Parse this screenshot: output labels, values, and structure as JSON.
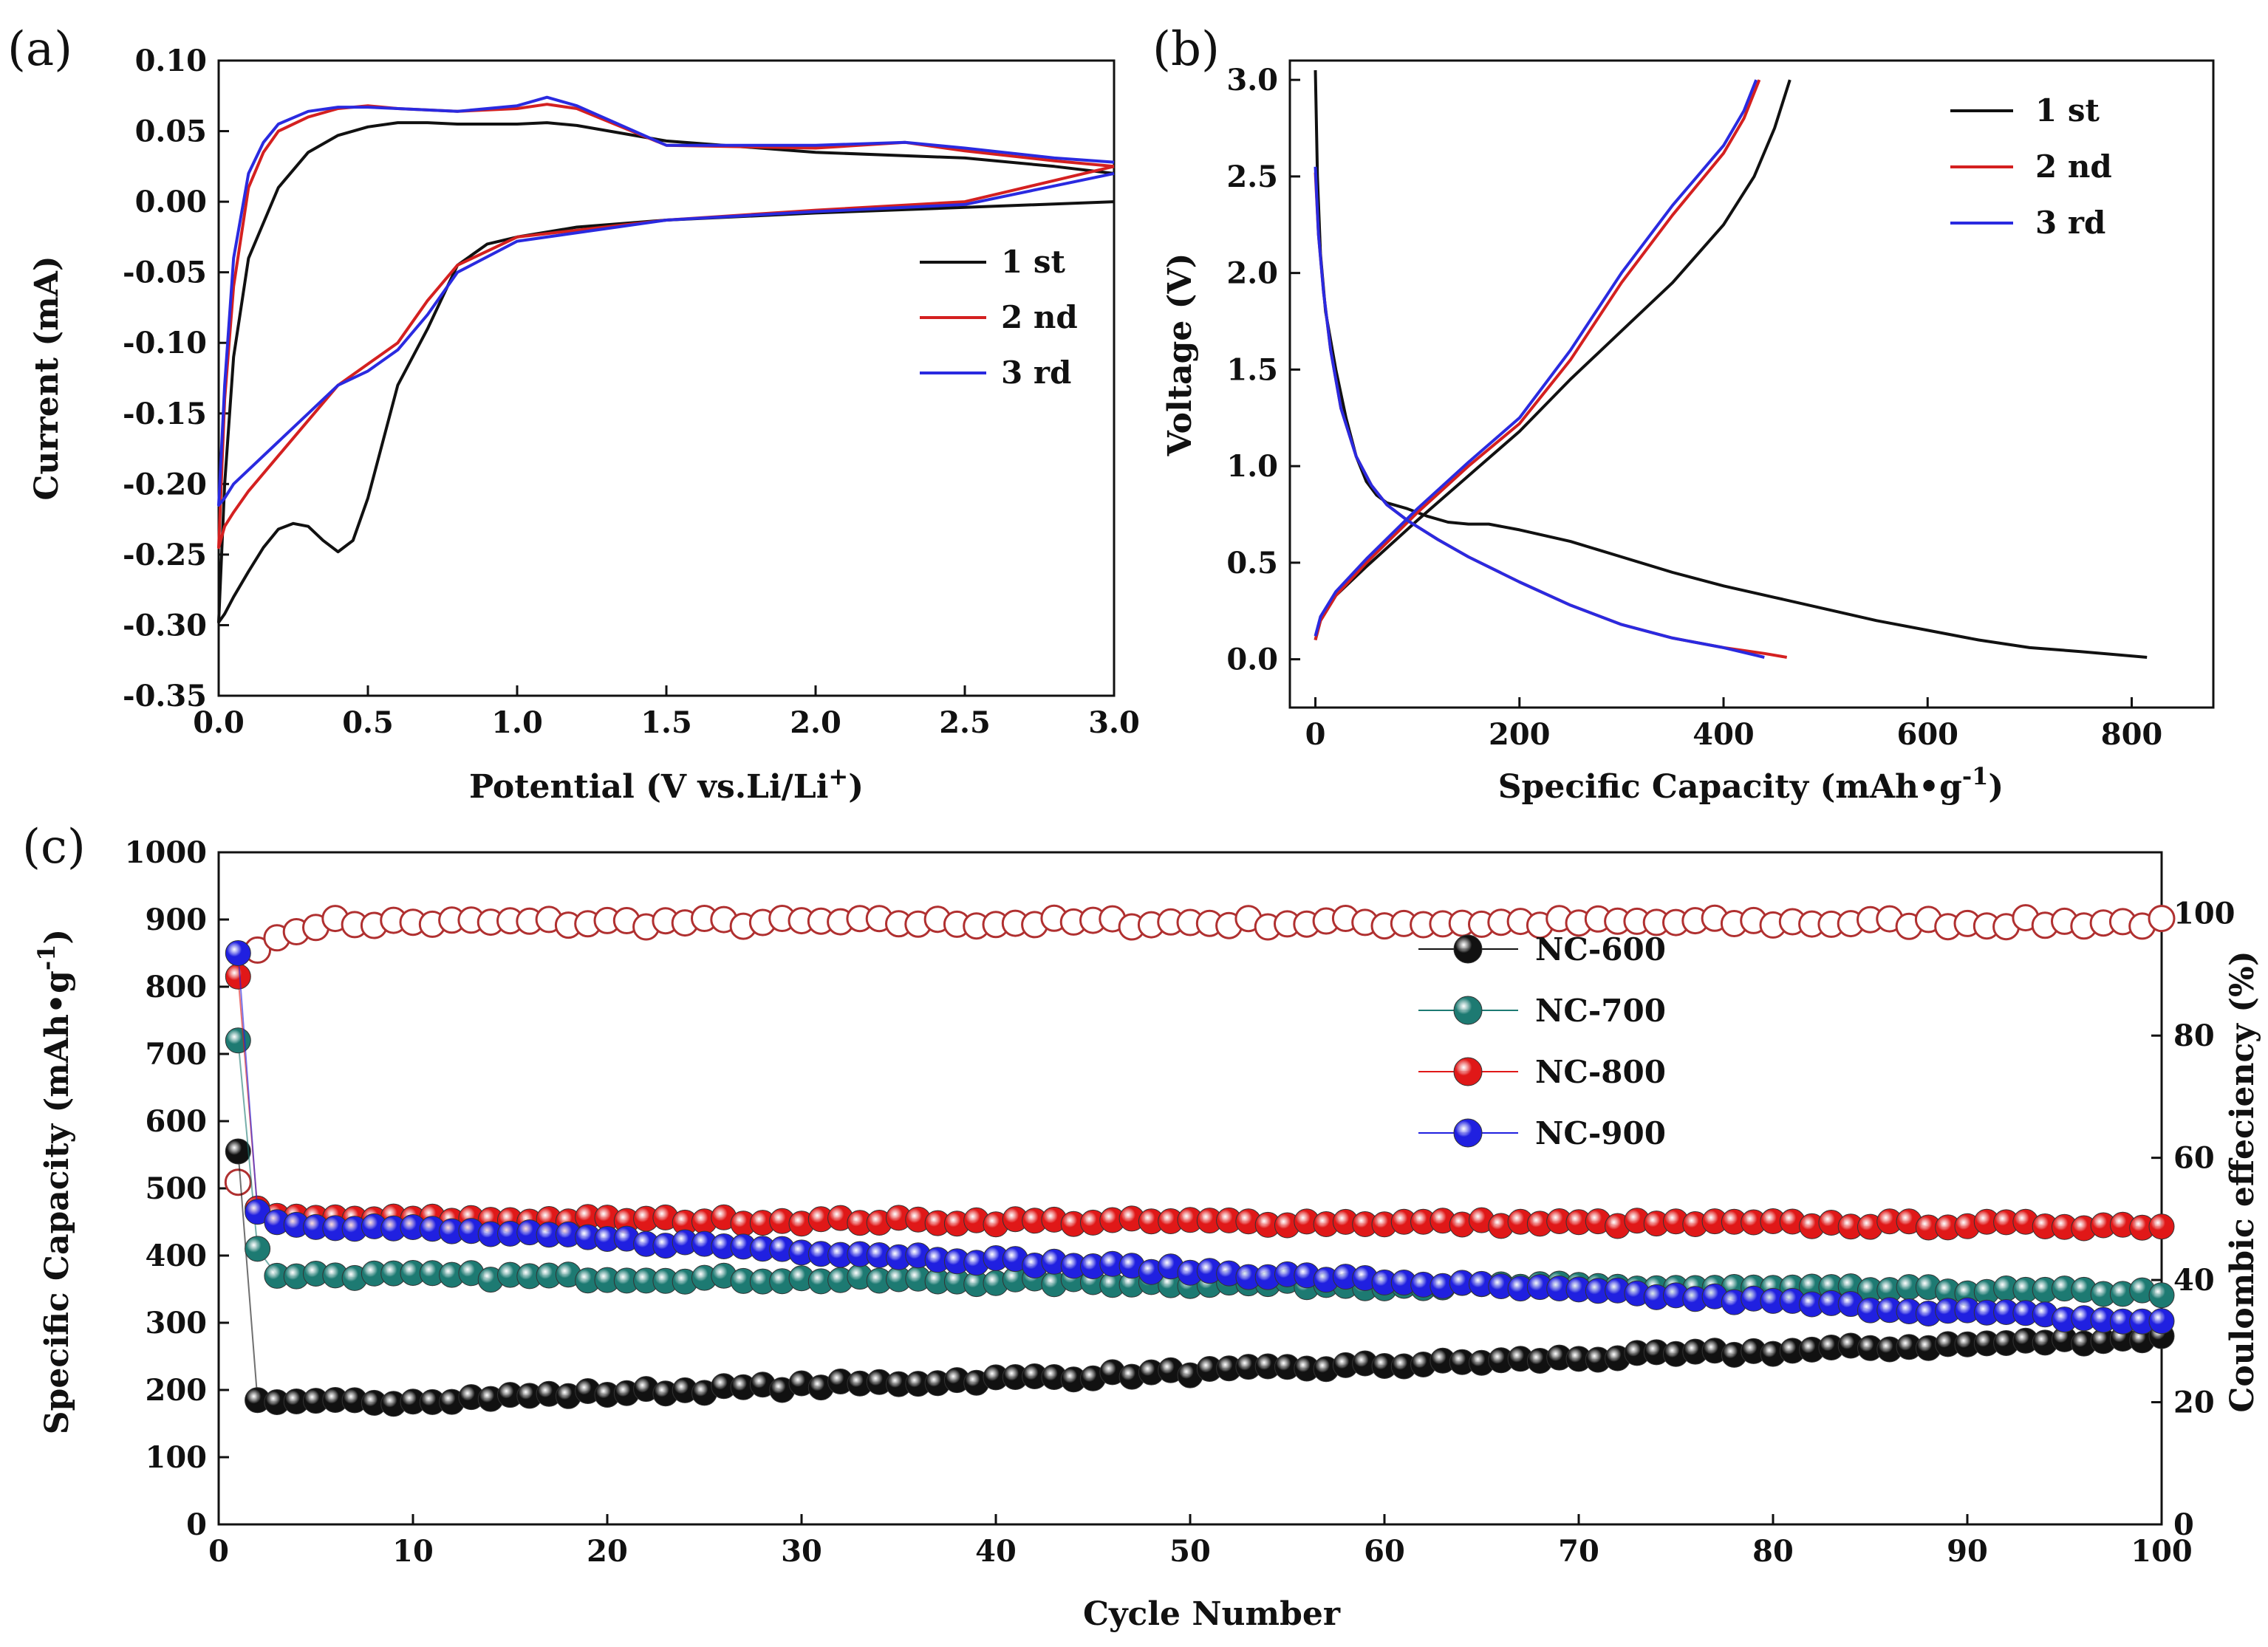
{
  "figure": {
    "panel_a_label": "(a)",
    "panel_b_label": "(b)",
    "panel_c_label": "(c)"
  },
  "chart_data": [
    {
      "id": "a",
      "type": "line",
      "title": "",
      "xlabel": "Potential (V vs.Li/Li",
      "xlabel_sup": "+",
      "xlabel_tail": ")",
      "ylabel": "Current (mA)",
      "xlim": [
        0.0,
        3.0
      ],
      "ylim": [
        -0.35,
        0.1
      ],
      "xticks": [
        "0.0",
        "0.5",
        "1.0",
        "1.5",
        "2.0",
        "2.5",
        "3.0"
      ],
      "yticks": [
        "0.10",
        "0.05",
        "0.00",
        "-0.05",
        "-0.10",
        "-0.15",
        "-0.20",
        "-0.25",
        "-0.30",
        "-0.35"
      ],
      "legend_position": "center-right",
      "series": [
        {
          "name": "1 st",
          "color": "#111111",
          "x": [
            3.0,
            2.5,
            2.0,
            1.5,
            1.2,
            1.0,
            0.9,
            0.8,
            0.7,
            0.6,
            0.55,
            0.5,
            0.45,
            0.4,
            0.35,
            0.3,
            0.25,
            0.2,
            0.15,
            0.1,
            0.05,
            0.02,
            0.0,
            0.02,
            0.05,
            0.1,
            0.2,
            0.3,
            0.4,
            0.5,
            0.6,
            0.7,
            0.8,
            1.0,
            1.1,
            1.2,
            1.5,
            2.0,
            2.5,
            2.8,
            3.0
          ],
          "y": [
            0.0,
            -0.004,
            -0.008,
            -0.013,
            -0.018,
            -0.025,
            -0.03,
            -0.045,
            -0.09,
            -0.13,
            -0.17,
            -0.21,
            -0.24,
            -0.248,
            -0.24,
            -0.23,
            -0.228,
            -0.232,
            -0.245,
            -0.262,
            -0.28,
            -0.292,
            -0.298,
            -0.2,
            -0.11,
            -0.04,
            0.01,
            0.035,
            0.047,
            0.053,
            0.056,
            0.056,
            0.055,
            0.055,
            0.056,
            0.054,
            0.043,
            0.035,
            0.031,
            0.025,
            0.02
          ]
        },
        {
          "name": "2 nd",
          "color": "#d42020",
          "x": [
            3.0,
            2.5,
            2.0,
            1.5,
            1.0,
            0.8,
            0.7,
            0.6,
            0.5,
            0.4,
            0.3,
            0.2,
            0.1,
            0.05,
            0.02,
            0.0,
            0.02,
            0.05,
            0.1,
            0.15,
            0.2,
            0.3,
            0.4,
            0.5,
            0.6,
            0.8,
            1.0,
            1.1,
            1.2,
            1.5,
            2.0,
            2.3,
            2.5,
            2.8,
            3.0
          ],
          "y": [
            0.025,
            0.0,
            -0.006,
            -0.013,
            -0.025,
            -0.045,
            -0.07,
            -0.1,
            -0.115,
            -0.13,
            -0.155,
            -0.18,
            -0.205,
            -0.22,
            -0.23,
            -0.245,
            -0.14,
            -0.06,
            0.01,
            0.035,
            0.05,
            0.06,
            0.066,
            0.068,
            0.066,
            0.064,
            0.066,
            0.069,
            0.066,
            0.04,
            0.038,
            0.042,
            0.036,
            0.029,
            0.025
          ]
        },
        {
          "name": "3 rd",
          "color": "#2a2ae0",
          "x": [
            3.0,
            2.5,
            2.0,
            1.5,
            1.0,
            0.8,
            0.7,
            0.6,
            0.5,
            0.4,
            0.3,
            0.2,
            0.1,
            0.05,
            0.02,
            0.0,
            0.02,
            0.05,
            0.1,
            0.15,
            0.2,
            0.3,
            0.4,
            0.5,
            0.6,
            0.8,
            1.0,
            1.1,
            1.2,
            1.5,
            2.0,
            2.3,
            2.5,
            2.8,
            3.0
          ],
          "y": [
            0.02,
            -0.002,
            -0.007,
            -0.013,
            -0.028,
            -0.05,
            -0.08,
            -0.105,
            -0.12,
            -0.13,
            -0.15,
            -0.17,
            -0.19,
            -0.2,
            -0.21,
            -0.215,
            -0.13,
            -0.04,
            0.02,
            0.042,
            0.055,
            0.064,
            0.067,
            0.067,
            0.066,
            0.064,
            0.068,
            0.074,
            0.068,
            0.04,
            0.04,
            0.042,
            0.038,
            0.031,
            0.028
          ]
        }
      ]
    },
    {
      "id": "b",
      "type": "line",
      "title": "",
      "xlabel": "Specific Capacity (mAh•g",
      "xlabel_sup": "-1",
      "xlabel_tail": ")",
      "ylabel": "Voltage (V)",
      "xlim": [
        -25,
        880
      ],
      "ylim": [
        -0.25,
        3.1
      ],
      "xticks": [
        "0",
        "200",
        "400",
        "600",
        "800"
      ],
      "yticks": [
        "0.0",
        "0.5",
        "1.0",
        "1.5",
        "2.0",
        "2.5",
        "3.0"
      ],
      "legend_position": "top-right",
      "series": [
        {
          "name": "1 st",
          "color": "#111111",
          "x": [
            0,
            2,
            5,
            10,
            20,
            30,
            40,
            50,
            60,
            70,
            90,
            110,
            130,
            150,
            170,
            200,
            250,
            300,
            350,
            400,
            450,
            500,
            550,
            600,
            650,
            700,
            750,
            815,
            null,
            0,
            5,
            20,
            50,
            100,
            150,
            200,
            250,
            300,
            350,
            400,
            430,
            450,
            465
          ],
          "y": [
            3.05,
            2.5,
            2.1,
            1.8,
            1.5,
            1.25,
            1.05,
            0.92,
            0.85,
            0.81,
            0.78,
            0.74,
            0.71,
            0.7,
            0.7,
            0.67,
            0.61,
            0.53,
            0.45,
            0.38,
            0.32,
            0.26,
            0.2,
            0.15,
            0.1,
            0.06,
            0.04,
            0.01,
            null,
            0.1,
            0.2,
            0.33,
            0.48,
            0.72,
            0.95,
            1.18,
            1.45,
            1.7,
            1.95,
            2.25,
            2.5,
            2.75,
            3.0
          ]
        },
        {
          "name": "2 nd",
          "color": "#d42020",
          "x": [
            0,
            3,
            8,
            15,
            25,
            40,
            55,
            70,
            90,
            120,
            150,
            200,
            250,
            300,
            350,
            400,
            440,
            462,
            null,
            0,
            5,
            20,
            50,
            100,
            150,
            200,
            250,
            300,
            350,
            400,
            420,
            435
          ],
          "y": [
            2.52,
            2.2,
            1.9,
            1.6,
            1.3,
            1.05,
            0.9,
            0.8,
            0.72,
            0.62,
            0.53,
            0.4,
            0.28,
            0.18,
            0.11,
            0.06,
            0.03,
            0.01,
            null,
            0.1,
            0.2,
            0.33,
            0.5,
            0.76,
            1.0,
            1.22,
            1.55,
            1.95,
            2.3,
            2.62,
            2.8,
            3.0
          ]
        },
        {
          "name": "3 rd",
          "color": "#2a2ae0",
          "x": [
            0,
            3,
            8,
            15,
            25,
            40,
            55,
            70,
            90,
            120,
            150,
            200,
            250,
            300,
            350,
            400,
            440,
            null,
            0,
            5,
            20,
            50,
            100,
            150,
            200,
            250,
            300,
            350,
            400,
            420,
            432
          ],
          "y": [
            2.55,
            2.2,
            1.9,
            1.6,
            1.3,
            1.05,
            0.9,
            0.8,
            0.72,
            0.62,
            0.53,
            0.4,
            0.28,
            0.18,
            0.11,
            0.06,
            0.01,
            null,
            0.12,
            0.22,
            0.35,
            0.52,
            0.78,
            1.02,
            1.25,
            1.6,
            2.0,
            2.35,
            2.66,
            2.84,
            3.0
          ]
        }
      ]
    },
    {
      "id": "c",
      "type": "scatter",
      "title": "",
      "xlabel": "Cycle Number",
      "ylabel": "Specific Capacity (mAh•g",
      "ylabel_sup": "-1",
      "ylabel_tail": ")",
      "y2label": "Coulombic effeciency (%)",
      "xlim": [
        0,
        100
      ],
      "ylim": [
        0,
        1000
      ],
      "y2lim": [
        0,
        110
      ],
      "xticks": [
        "0",
        "10",
        "20",
        "30",
        "40",
        "50",
        "60",
        "70",
        "80",
        "90",
        "100"
      ],
      "yticks": [
        "0",
        "100",
        "200",
        "300",
        "400",
        "500",
        "600",
        "700",
        "800",
        "900",
        "1000"
      ],
      "y2ticks": [
        "0",
        "20",
        "40",
        "60",
        "80",
        "100"
      ],
      "legend_position": "upper-center",
      "series": [
        {
          "name": "NC-600",
          "color": "#111111",
          "first": 555,
          "second": 185,
          "start": 178,
          "end": 278
        },
        {
          "name": "NC-700",
          "color": "#1d7a72",
          "first": 720,
          "second": 410,
          "start": 372,
          "end": 345
        },
        {
          "name": "NC-800",
          "color": "#e01818",
          "first": 815,
          "second": 470,
          "start": 455,
          "end": 445
        },
        {
          "name": "NC-900",
          "color": "#2020e0",
          "first": 850,
          "second": 465,
          "start": 450,
          "end": 300
        }
      ],
      "coulombic_efficiency": {
        "color": "#b03030",
        "first": 56,
        "second": 94,
        "plateau": 98.5
      }
    }
  ]
}
